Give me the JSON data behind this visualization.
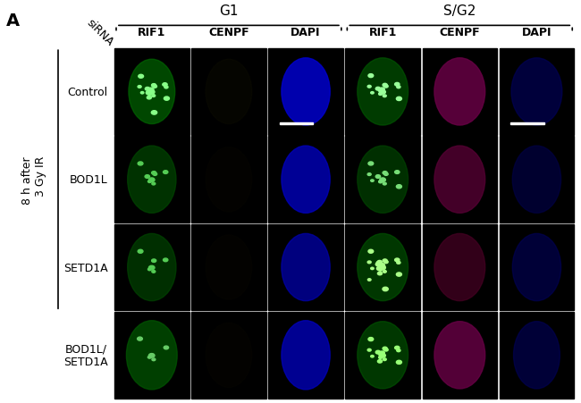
{
  "title_letter": "A",
  "group_labels": [
    "G1",
    "S/G2"
  ],
  "col_labels": [
    "RIF1",
    "CENPF",
    "DAPI",
    "RIF1",
    "CENPF",
    "DAPI"
  ],
  "row_labels": [
    "Control",
    "BOD1L",
    "SETD1A",
    "BOD1L/\nSETD1A"
  ],
  "y_side_label": "8 h after\n3 Gy IR",
  "x_side_label": "siRNA",
  "background_color": "#ffffff",
  "image_bg": "#000000",
  "n_rows": 4,
  "n_cols": 6,
  "cell_colors": [
    [
      "green_spots",
      "dark",
      "blue_oval",
      "green_spots2",
      "magenta_oval",
      "blue_oval_dark"
    ],
    [
      "green_diffuse",
      "dark",
      "blue_oval",
      "green_spots3",
      "magenta_dark",
      "blue_oval2"
    ],
    [
      "green_diffuse2",
      "dark",
      "blue_oval2",
      "green_spots4",
      "magenta_dark2",
      "blue_oval3"
    ],
    [
      "green_diffuse3",
      "dark",
      "blue_oval3",
      "green_spots5",
      "magenta_oval2",
      "blue_oval4"
    ]
  ],
  "font_size_labels": 10,
  "font_size_title": 14,
  "font_size_group": 11,
  "font_size_col": 9,
  "font_size_row": 9,
  "font_size_side": 9
}
